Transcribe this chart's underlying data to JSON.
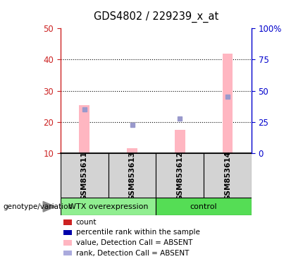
{
  "title": "GDS4802 / 229239_x_at",
  "samples": [
    "GSM853611",
    "GSM853613",
    "GSM853612",
    "GSM853614"
  ],
  "groups": [
    "WTX overexpression",
    "WTX overexpression",
    "control",
    "control"
  ],
  "group_colors": {
    "WTX overexpression": "#90EE90",
    "control": "#55DD55"
  },
  "ylim_left": [
    10,
    50
  ],
  "ylim_right": [
    0,
    100
  ],
  "yticks_left": [
    10,
    20,
    30,
    40,
    50
  ],
  "ytick_labels_right": [
    "0",
    "25",
    "50",
    "75",
    "100%"
  ],
  "bar_bottom": 10,
  "pink_bar_values": [
    25.5,
    11.5,
    17.5,
    42.0
  ],
  "blue_square_values": [
    24.0,
    19.0,
    21.0,
    28.0
  ],
  "pink_bar_color": "#FFB6C1",
  "blue_square_color": "#9999CC",
  "legend_items": [
    {
      "color": "#CC2222",
      "label": "count"
    },
    {
      "color": "#0000AA",
      "label": "percentile rank within the sample"
    },
    {
      "color": "#FFB6C1",
      "label": "value, Detection Call = ABSENT"
    },
    {
      "color": "#AAAADD",
      "label": "rank, Detection Call = ABSENT"
    }
  ],
  "group_label": "genotype/variation",
  "left_axis_color": "#CC2222",
  "right_axis_color": "#0000CC"
}
